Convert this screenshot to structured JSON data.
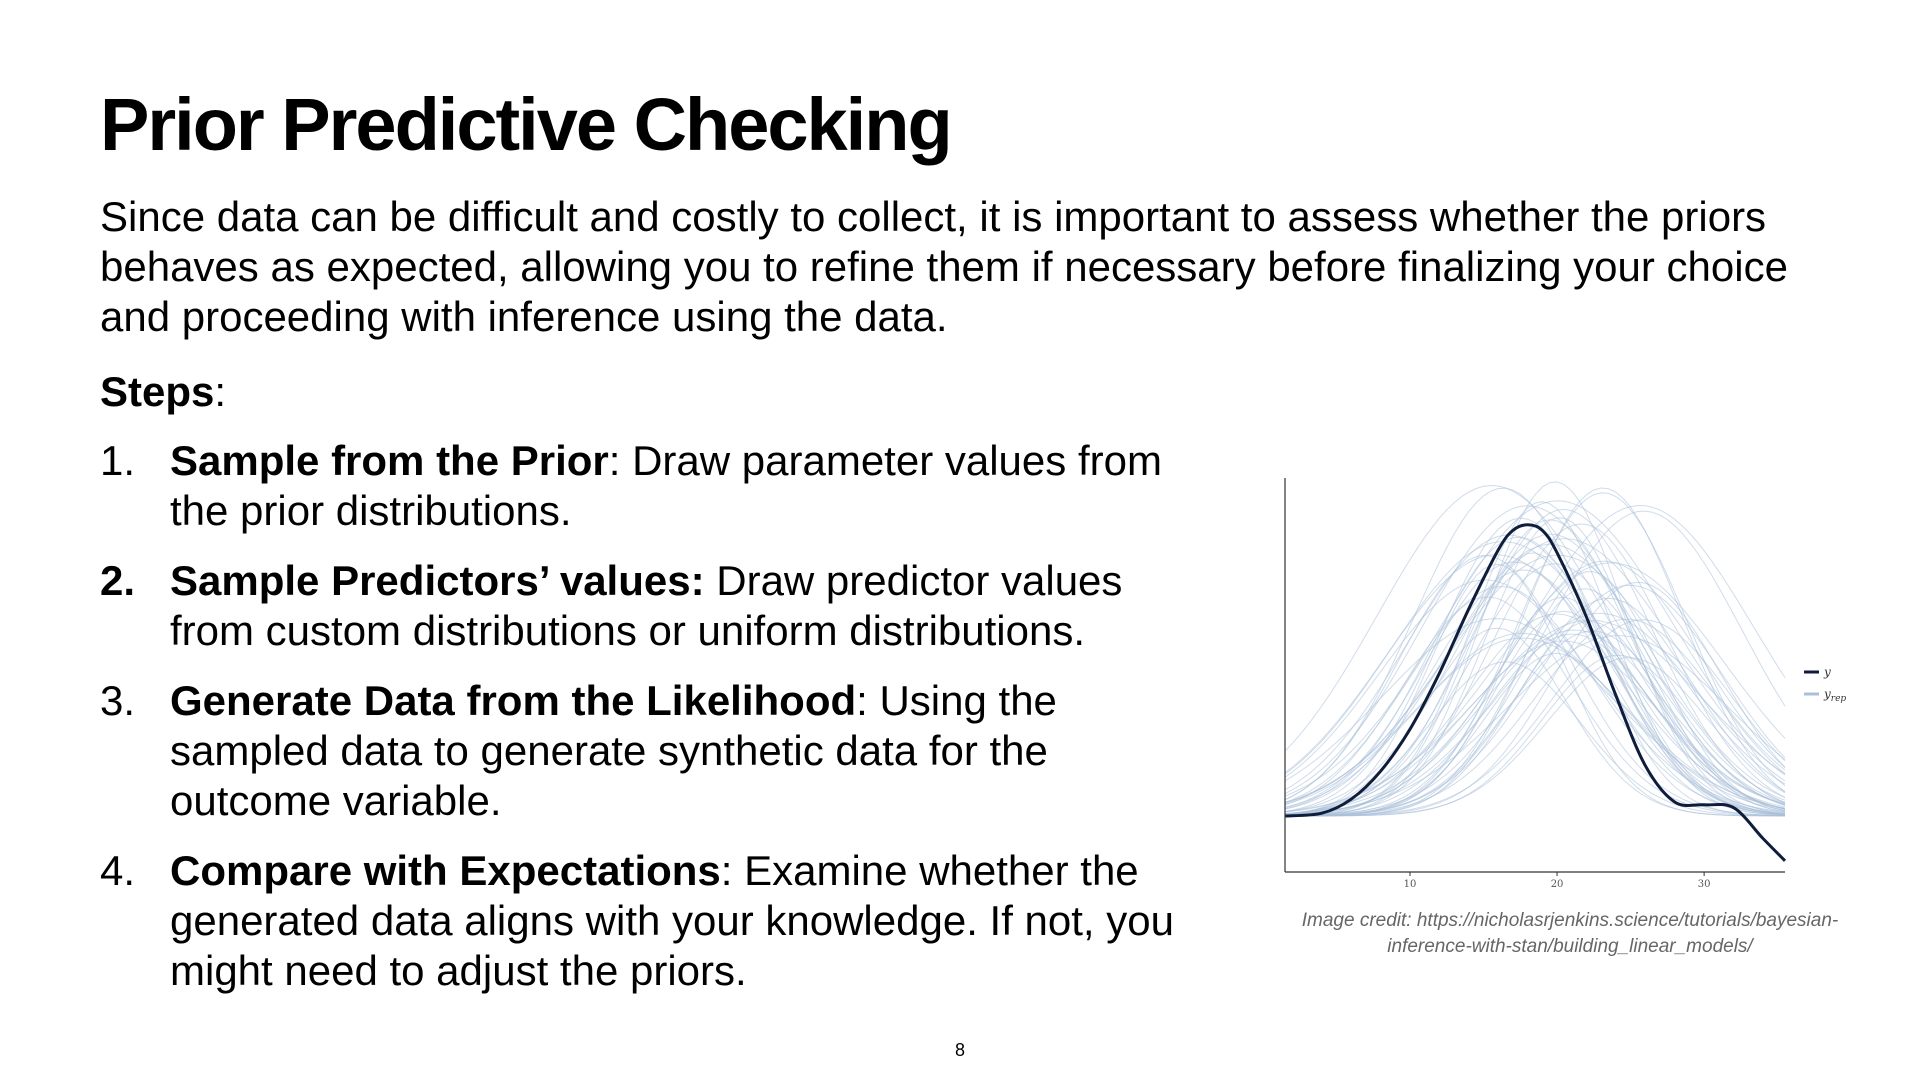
{
  "slide": {
    "title": "Prior Predictive Checking",
    "intro": "Since data can be difficult and costly to collect, it is important to assess whether the priors behaves as expected, allowing you to refine them if necessary before finalizing your choice and proceeding with inference using the data.",
    "steps_heading": "Steps",
    "steps_colon": ":",
    "steps": [
      {
        "number": "1.",
        "number_bold": false,
        "bold": "Sample from the Prior",
        "text": ": Draw parameter values from the prior distributions."
      },
      {
        "number": "2.",
        "number_bold": true,
        "bold": "Sample Predictors’ values:",
        "text": " Draw predictor values from custom distributions or uniform distributions."
      },
      {
        "number": "3.",
        "number_bold": false,
        "bold": "Generate Data from the Likelihood",
        "text": ": Using the sampled data to generate synthetic data for the outcome variable."
      },
      {
        "number": "4.",
        "number_bold": false,
        "bold": "Compare with Expectations",
        "text": ": Examine whether the generated data aligns with your knowledge. If not, you might need to adjust the priors."
      }
    ],
    "image_credit": "Image credit: https://nicholasrjenkins.science/tutorials/bayesian-inference-with-stan/building_linear_models/",
    "page_number": "8"
  },
  "chart_data": {
    "type": "line",
    "x_ticks": [
      "10",
      "20",
      "30"
    ],
    "xlim": [
      1.5,
      35.5
    ],
    "legend": {
      "position": "right",
      "entries": [
        {
          "label": "y",
          "color": "#0f1d3d"
        },
        {
          "label": "y_rep",
          "label_main": "y",
          "label_sub": "rep",
          "color": "#a9c0d8"
        }
      ]
    },
    "series": [
      {
        "name": "y",
        "color": "#0f1d3d",
        "x": [
          1.5,
          4,
          6,
          8,
          10,
          12,
          14,
          16,
          17,
          18,
          19,
          20,
          22,
          24,
          26,
          28,
          30,
          32,
          34,
          35.5
        ],
        "y": [
          0.0,
          0.2,
          1.2,
          3.2,
          6.2,
          10.2,
          14.8,
          19.0,
          20.4,
          20.8,
          20.4,
          18.8,
          14.2,
          8.6,
          3.6,
          1.0,
          0.8,
          0.6,
          -1.6,
          -3.2
        ]
      }
    ],
    "replicates": {
      "name": "y_rep",
      "color": "#a9c0d8",
      "count": 60,
      "center_range": [
        15,
        26
      ],
      "sd_range": [
        4.5,
        8
      ],
      "peak_range": [
        11,
        24
      ]
    },
    "ylim": [
      -4,
      24
    ]
  }
}
